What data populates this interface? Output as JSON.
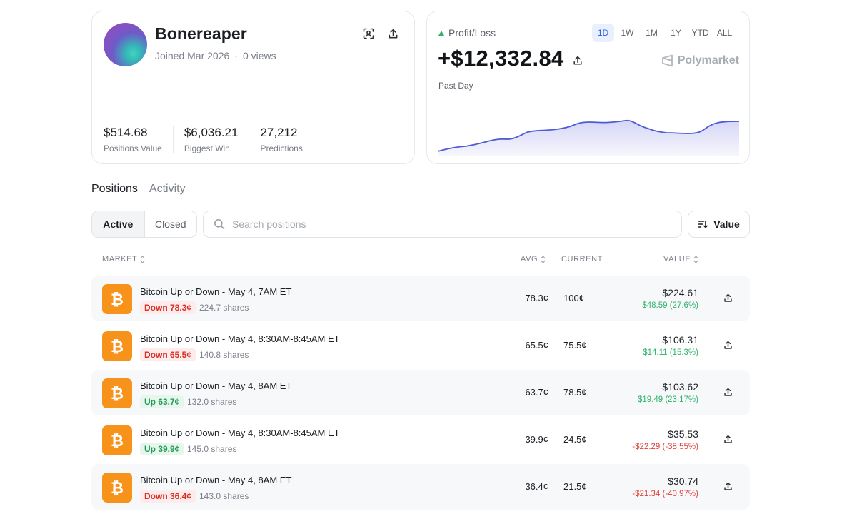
{
  "profile": {
    "username": "Bonereaper",
    "joined": "Joined Mar 2026",
    "views": "0 views",
    "stats": [
      {
        "value": "$514.68",
        "label": "Positions Value"
      },
      {
        "value": "$6,036.21",
        "label": "Biggest Win"
      },
      {
        "value": "27,212",
        "label": "Predictions"
      }
    ]
  },
  "pnl": {
    "label": "Profit/Loss",
    "value": "+$12,332.84",
    "period_label": "Past Day",
    "brand": "Polymarket",
    "periods": [
      "1D",
      "1W",
      "1M",
      "1Y",
      "YTD",
      "ALL"
    ],
    "active_period": "1D",
    "line_color": "#4f5bd5"
  },
  "tabs": [
    "Positions",
    "Activity"
  ],
  "filters": {
    "active": "Active",
    "closed": "Closed"
  },
  "search": {
    "placeholder": "Search positions"
  },
  "sort": {
    "label": "Value"
  },
  "table": {
    "headers": {
      "market": "MARKET",
      "avg": "AVG",
      "current": "CURRENT",
      "value": "VALUE"
    },
    "rows": [
      {
        "title": "Bitcoin Up or Down - May 4, 7AM ET",
        "side": "Down 78.3¢",
        "direction": "down",
        "shares": "224.7 shares",
        "avg": "78.3¢",
        "current": "100¢",
        "value": "$224.61",
        "change": "$48.59 (27.6%)",
        "change_sign": "pos"
      },
      {
        "title": "Bitcoin Up or Down - May 4, 8:30AM-8:45AM ET",
        "side": "Down 65.5¢",
        "direction": "down",
        "shares": "140.8 shares",
        "avg": "65.5¢",
        "current": "75.5¢",
        "value": "$106.31",
        "change": "$14.11 (15.3%)",
        "change_sign": "pos"
      },
      {
        "title": "Bitcoin Up or Down - May 4, 8AM ET",
        "side": "Up 63.7¢",
        "direction": "up",
        "shares": "132.0 shares",
        "avg": "63.7¢",
        "current": "78.5¢",
        "value": "$103.62",
        "change": "$19.49 (23.17%)",
        "change_sign": "pos"
      },
      {
        "title": "Bitcoin Up or Down - May 4, 8:30AM-8:45AM ET",
        "side": "Up 39.9¢",
        "direction": "up",
        "shares": "145.0 shares",
        "avg": "39.9¢",
        "current": "24.5¢",
        "value": "$35.53",
        "change": "-$22.29 (-38.55%)",
        "change_sign": "neg"
      },
      {
        "title": "Bitcoin Up or Down - May 4, 8AM ET",
        "side": "Down 36.4¢",
        "direction": "down",
        "shares": "143.0 shares",
        "avg": "36.4¢",
        "current": "21.5¢",
        "value": "$30.74",
        "change": "-$21.34 (-40.97%)",
        "change_sign": "neg"
      }
    ]
  },
  "colors": {
    "accent": "#2d5fd7",
    "bitcoin": "#f7931a",
    "positive": "#2fb36b",
    "negative": "#e0403a"
  }
}
